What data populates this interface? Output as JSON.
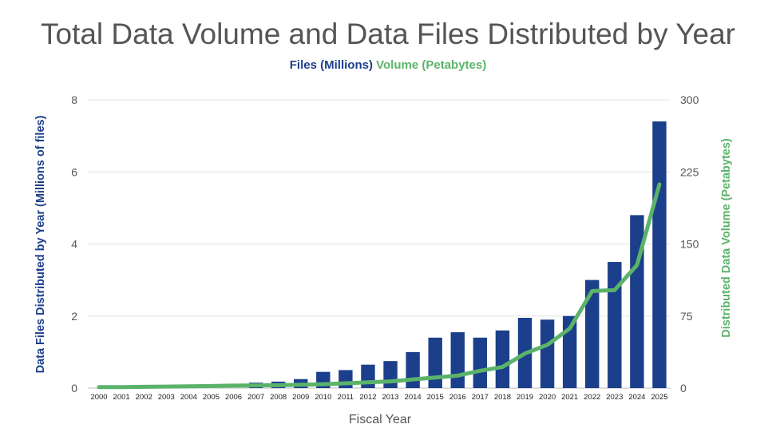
{
  "chart_data": {
    "type": "bar",
    "title": "Total Data Volume and Data Files Distributed by Year",
    "xlabel": "Fiscal Year",
    "ylabel": "Data Files Distributed by Year (Millions of files)",
    "y2label": "Distributed Data Volume (Petabytes)",
    "legend_position": "top-center",
    "grid": true,
    "categories": [
      "2000",
      "2001",
      "2002",
      "2003",
      "2004",
      "2005",
      "2006",
      "2007",
      "2008",
      "2009",
      "2010",
      "2011",
      "2012",
      "2013",
      "2014",
      "2015",
      "2016",
      "2017",
      "2018",
      "2019",
      "2020",
      "2021",
      "2022",
      "2023",
      "2024",
      "2025"
    ],
    "ylim": [
      0,
      8
    ],
    "y_ticks": [
      "0",
      "2",
      "4",
      "6",
      "8"
    ],
    "y2lim": [
      0,
      300
    ],
    "y2_ticks": [
      "0",
      "75",
      "150",
      "225",
      "300"
    ],
    "series": [
      {
        "name": "Files (Millions)",
        "type": "bar",
        "axis": "left",
        "color": "#1b3f8b",
        "values": [
          0,
          0,
          0,
          0,
          0,
          0,
          0,
          0.15,
          0.18,
          0.25,
          0.45,
          0.5,
          0.65,
          0.75,
          1.0,
          1.4,
          1.55,
          1.4,
          1.6,
          1.95,
          1.9,
          2.0,
          3.0,
          3.5,
          4.8,
          7.4
        ]
      },
      {
        "name": "Volume (Petabytes)",
        "type": "line",
        "axis": "right",
        "color": "#5bb36a",
        "values": [
          1,
          1,
          1.3,
          1.6,
          1.9,
          2.2,
          2.6,
          2.8,
          3,
          3.5,
          4,
          5,
          6,
          7,
          9,
          11,
          13,
          18,
          22,
          36,
          45,
          62,
          101,
          102,
          128,
          212
        ]
      }
    ]
  }
}
